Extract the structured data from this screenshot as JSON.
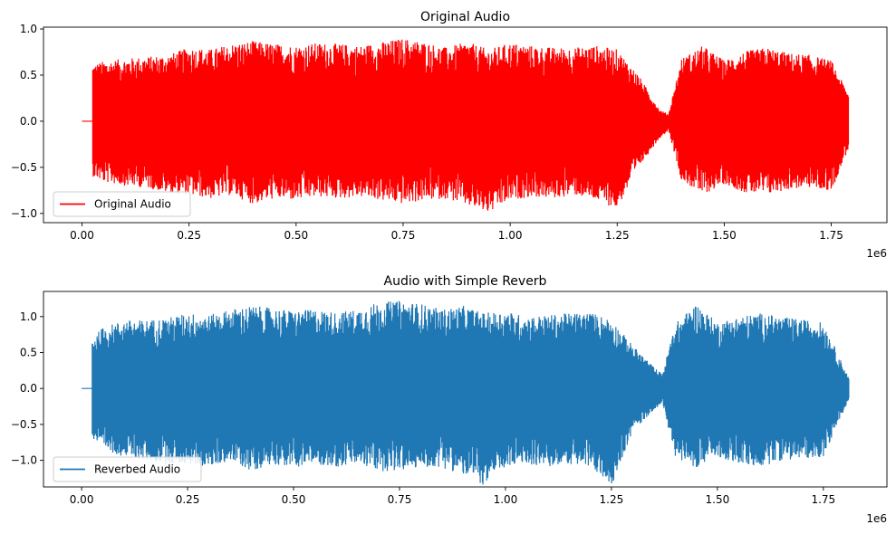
{
  "chart_data": [
    {
      "type": "line",
      "title": "Original Audio",
      "xlabel": "",
      "ylabel": "",
      "x_offset_label": "1e6",
      "x_scale_factor": 1000000,
      "xlim": [
        -0.09,
        1.88
      ],
      "ylim": [
        -1.1,
        1.02
      ],
      "x_ticks": [
        0.0,
        0.25,
        0.5,
        0.75,
        1.0,
        1.25,
        1.5,
        1.75
      ],
      "x_tick_labels": [
        "0.00",
        "0.25",
        "0.50",
        "0.75",
        "1.00",
        "1.25",
        "1.50",
        "1.75"
      ],
      "y_ticks": [
        -1.0,
        -0.5,
        0.0,
        0.5,
        1.0
      ],
      "y_tick_labels": [
        "−1.0",
        "−0.5",
        "0.0",
        "0.5",
        "1.0"
      ],
      "grid": false,
      "legend_position": "lower-left",
      "series": [
        {
          "name": "Original Audio",
          "color": "#ff0000",
          "description": "audio waveform amplitude envelope (positive / negative peaks)",
          "silence_start": 0.0,
          "signal_start": 0.025,
          "signal_end": 1.79,
          "envelope": {
            "x": [
              0.025,
              0.05,
              0.1,
              0.15,
              0.2,
              0.25,
              0.3,
              0.35,
              0.4,
              0.45,
              0.5,
              0.55,
              0.6,
              0.65,
              0.7,
              0.75,
              0.8,
              0.85,
              0.9,
              0.95,
              1.0,
              1.05,
              1.1,
              1.15,
              1.2,
              1.25,
              1.3,
              1.35,
              1.37,
              1.4,
              1.45,
              1.5,
              1.55,
              1.6,
              1.65,
              1.7,
              1.75,
              1.79
            ],
            "upper": [
              0.62,
              0.65,
              0.68,
              0.7,
              0.72,
              0.8,
              0.78,
              0.84,
              0.87,
              0.84,
              0.82,
              0.85,
              0.84,
              0.82,
              0.86,
              0.9,
              0.86,
              0.8,
              0.86,
              0.78,
              0.85,
              0.82,
              0.8,
              0.8,
              0.82,
              0.78,
              0.5,
              0.12,
              0.08,
              0.68,
              0.82,
              0.66,
              0.76,
              0.8,
              0.74,
              0.72,
              0.66,
              0.3
            ],
            "lower": [
              -0.6,
              -0.66,
              -0.7,
              -0.72,
              -0.78,
              -0.8,
              -0.84,
              -0.8,
              -0.9,
              -0.84,
              -0.86,
              -0.82,
              -0.84,
              -0.82,
              -0.86,
              -0.9,
              -0.86,
              -0.84,
              -0.92,
              -1.0,
              -0.86,
              -0.82,
              -0.84,
              -0.8,
              -0.86,
              -0.95,
              -0.5,
              -0.18,
              -0.1,
              -0.64,
              -0.8,
              -0.68,
              -0.78,
              -0.8,
              -0.74,
              -0.72,
              -0.76,
              -0.3
            ]
          }
        }
      ]
    },
    {
      "type": "line",
      "title": "Audio with Simple Reverb",
      "xlabel": "",
      "ylabel": "",
      "x_offset_label": "1e6",
      "x_scale_factor": 1000000,
      "xlim": [
        -0.09,
        1.9
      ],
      "ylim": [
        -1.37,
        1.35
      ],
      "x_ticks": [
        0.0,
        0.25,
        0.5,
        0.75,
        1.0,
        1.25,
        1.5,
        1.75
      ],
      "x_tick_labels": [
        "0.00",
        "0.25",
        "0.50",
        "0.75",
        "1.00",
        "1.25",
        "1.50",
        "1.75"
      ],
      "y_ticks": [
        -1.0,
        -0.5,
        0.0,
        0.5,
        1.0
      ],
      "y_tick_labels": [
        "−1.0",
        "−0.5",
        "0.0",
        "0.5",
        "1.0"
      ],
      "grid": false,
      "legend_position": "lower-left",
      "series": [
        {
          "name": "Reverbed Audio",
          "color": "#1f77b4",
          "description": "audio waveform amplitude envelope (positive / negative peaks)",
          "silence_start": 0.0,
          "signal_start": 0.025,
          "signal_end": 1.81,
          "envelope": {
            "x": [
              0.025,
              0.05,
              0.1,
              0.15,
              0.2,
              0.25,
              0.3,
              0.35,
              0.4,
              0.45,
              0.5,
              0.55,
              0.6,
              0.65,
              0.7,
              0.75,
              0.8,
              0.85,
              0.9,
              0.95,
              1.0,
              1.05,
              1.1,
              1.15,
              1.2,
              1.25,
              1.3,
              1.35,
              1.37,
              1.4,
              1.45,
              1.5,
              1.55,
              1.6,
              1.65,
              1.7,
              1.75,
              1.81
            ],
            "upper": [
              0.7,
              0.85,
              0.95,
              0.95,
              0.98,
              1.05,
              1.02,
              1.1,
              1.15,
              1.12,
              1.08,
              1.1,
              1.06,
              1.1,
              1.2,
              1.22,
              1.18,
              1.1,
              1.15,
              1.05,
              1.08,
              1.0,
              1.02,
              1.05,
              1.06,
              0.96,
              0.6,
              0.3,
              0.2,
              0.9,
              1.18,
              0.92,
              1.0,
              1.05,
              1.0,
              0.96,
              0.92,
              0.15
            ],
            "lower": [
              -0.7,
              -0.85,
              -0.95,
              -1.0,
              -1.05,
              -1.05,
              -1.1,
              -1.0,
              -1.15,
              -1.05,
              -1.1,
              -1.05,
              -1.1,
              -1.05,
              -1.15,
              -1.15,
              -1.1,
              -1.1,
              -1.2,
              -1.35,
              -1.1,
              -1.05,
              -1.1,
              -1.05,
              -1.1,
              -1.35,
              -0.6,
              -0.3,
              -0.2,
              -0.95,
              -1.1,
              -0.95,
              -1.05,
              -1.1,
              -1.0,
              -0.98,
              -0.95,
              -0.15
            ]
          }
        }
      ]
    }
  ]
}
